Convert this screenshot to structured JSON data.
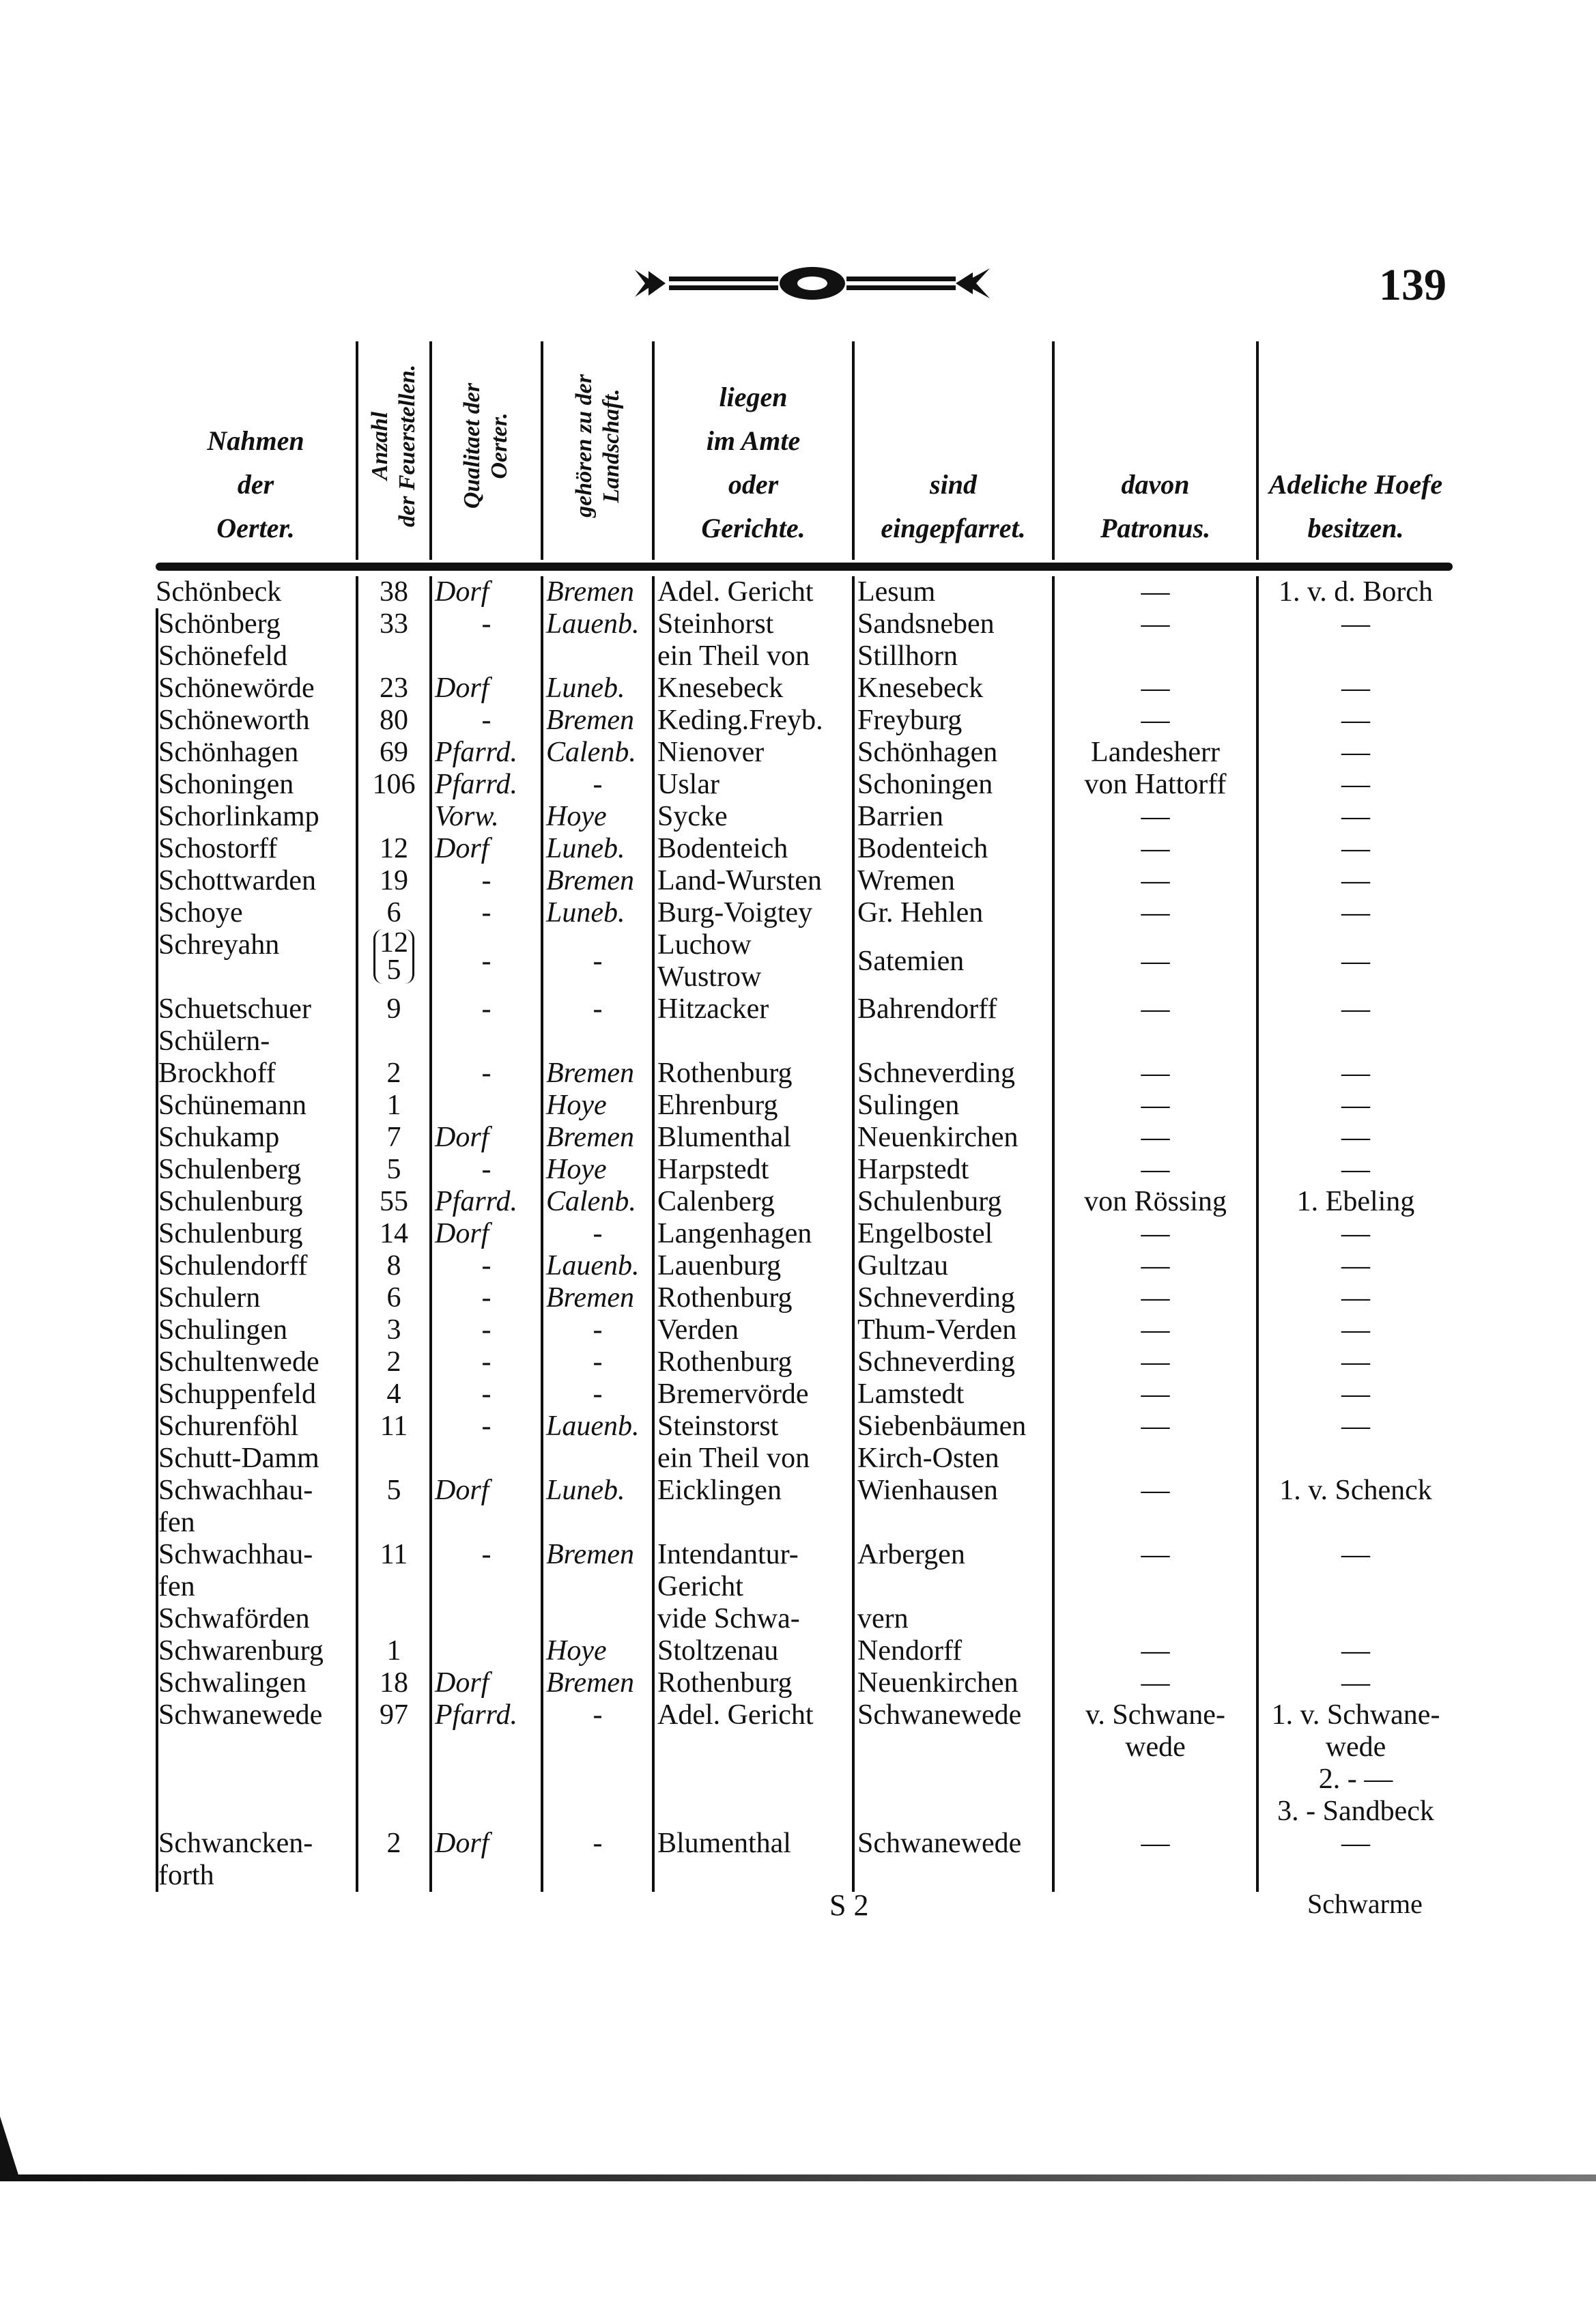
{
  "page_number": "139",
  "header": {
    "name": [
      "Nahmen",
      "der",
      "Oerter."
    ],
    "count": [
      "Anzahl",
      "der Feuerstellen."
    ],
    "quality": [
      "Qualitaet der",
      "Oerter."
    ],
    "province": [
      "gehören zu der",
      "Landschaft."
    ],
    "amt": [
      "liegen",
      "im Amte",
      "oder",
      "Gerichte."
    ],
    "parish": [
      "sind",
      "eingepfarret."
    ],
    "patron": [
      "davon",
      "Patronus."
    ],
    "noble": [
      "Adeliche Hoefe",
      "besitzen."
    ]
  },
  "rows": [
    [
      "Schönbeck",
      "38",
      "Dorf",
      "Bremen",
      "Adel. Gericht",
      "Lesum",
      "—",
      "1. v. d. Borch"
    ],
    [
      "Schönberg",
      "33",
      "-",
      "Lauenb.",
      "Steinhorst",
      "Sandsneben",
      "—",
      "—"
    ],
    [
      "Schönefeld",
      "",
      "",
      "",
      "ein Theil von",
      "Stillhorn",
      "",
      ""
    ],
    [
      "Schönewörde",
      "23",
      "Dorf",
      "Luneb.",
      "Knesebeck",
      "Knesebeck",
      "—",
      "—"
    ],
    [
      "Schöneworth",
      "80",
      "-",
      "Bremen",
      "Keding.Freyb.",
      "Freyburg",
      "—",
      "—"
    ],
    [
      "Schönhagen",
      "69",
      "Pfarrd.",
      "Calenb.",
      "Nienover",
      "Schönhagen",
      "Landesherr",
      "—"
    ],
    [
      "Schoningen",
      "106",
      "Pfarrd.",
      "-",
      "Uslar",
      "Schoningen",
      "von Hattorff",
      "—"
    ],
    [
      "Schorlinkamp",
      "",
      "Vorw.",
      "Hoye",
      "Sycke",
      "Barrien",
      "—",
      "—"
    ],
    [
      "Schostorff",
      "12",
      "Dorf",
      "Luneb.",
      "Bodenteich",
      "Bodenteich",
      "—",
      "—"
    ],
    [
      "Schottwarden",
      "19",
      "-",
      "Bremen",
      "Land-Wursten",
      "Wremen",
      "—",
      "—"
    ],
    [
      "Schoye",
      "6",
      "-",
      "Luneb.",
      "Burg-Voigtey",
      "Gr. Hehlen",
      "—",
      "—"
    ],
    [
      "Schreyahn",
      "12\n5",
      "-",
      "-",
      "Luchow\nWustrow",
      "Satemien",
      "—",
      "—"
    ],
    [
      "Schuetschuer",
      "9",
      "-",
      "-",
      "Hitzacker",
      "Bahrendorff",
      "—",
      "—"
    ],
    [
      "Schülern-\n   Brockhoff",
      "2",
      "-",
      "Bremen",
      "Rothenburg",
      "Schneverding",
      "—",
      "—"
    ],
    [
      "Schünemann",
      "1",
      "",
      "Hoye",
      "Ehrenburg",
      "Sulingen",
      "—",
      "—"
    ],
    [
      "Schukamp",
      "7",
      "Dorf",
      "Bremen",
      "Blumenthal",
      "Neuenkirchen",
      "—",
      "—"
    ],
    [
      "Schulenberg",
      "5",
      "-",
      "Hoye",
      "Harpstedt",
      "Harpstedt",
      "—",
      "—"
    ],
    [
      "Schulenburg",
      "55",
      "Pfarrd.",
      "Calenb.",
      "Calenberg",
      "Schulenburg",
      "von Rössing",
      "1. Ebeling"
    ],
    [
      "Schulenburg",
      "14",
      "Dorf",
      "-",
      "Langenhagen",
      "Engelbostel",
      "—",
      "—"
    ],
    [
      "Schulendorff",
      "8",
      "-",
      "Lauenb.",
      "Lauenburg",
      "Gultzau",
      "—",
      "—"
    ],
    [
      "Schulern",
      "6",
      "-",
      "Bremen",
      "Rothenburg",
      "Schneverding",
      "—",
      "—"
    ],
    [
      "Schulingen",
      "3",
      "-",
      "-",
      "Verden",
      "Thum-Verden",
      "—",
      "—"
    ],
    [
      "Schultenwede",
      "2",
      "-",
      "-",
      "Rothenburg",
      "Schneverding",
      "—",
      "—"
    ],
    [
      "Schuppenfeld",
      "4",
      "-",
      "-",
      "Bremervörde",
      "Lamstedt",
      "—",
      "—"
    ],
    [
      "Schurenföhl",
      "11",
      "-",
      "Lauenb.",
      "Steinstorst",
      "Siebenbäumen",
      "—",
      "—"
    ],
    [
      "Schutt-Damm",
      "",
      "",
      "",
      "ein Theil von",
      "Kirch-Osten",
      "",
      ""
    ],
    [
      "Schwachhau-\n   fen",
      "5",
      "Dorf",
      "Luneb.",
      "Eicklingen",
      "Wienhausen",
      "—",
      "1. v. Schenck"
    ],
    [
      "Schwachhau-\n   fen",
      "11",
      "-",
      "Bremen",
      "Intendantur-\nGericht",
      "Arbergen",
      "—",
      "—"
    ],
    [
      "Schwaförden",
      "",
      "",
      "",
      "vide   Schwa-",
      "vern",
      "",
      ""
    ],
    [
      "Schwarenburg",
      "1",
      "",
      "Hoye",
      "Stoltzenau",
      "Nendorff",
      "—",
      "—"
    ],
    [
      "Schwalingen",
      "18",
      "Dorf",
      "Bremen",
      "Rothenburg",
      "Neuenkirchen",
      "—",
      "—"
    ],
    [
      "Schwanewede",
      "97",
      "Pfarrd.",
      "-",
      "Adel. Gericht",
      "Schwanewede",
      "v. Schwane-\nwede",
      "1. v. Schwane-\n        wede\n2. -    —\n3. - Sandbeck"
    ],
    [
      "Schwancken-\n   forth",
      "2",
      "Dorf",
      "-",
      "Blumenthal",
      "Schwanewede",
      "—",
      "—"
    ]
  ],
  "footer": {
    "signature": "S 2",
    "catchword": "Schwarme"
  }
}
